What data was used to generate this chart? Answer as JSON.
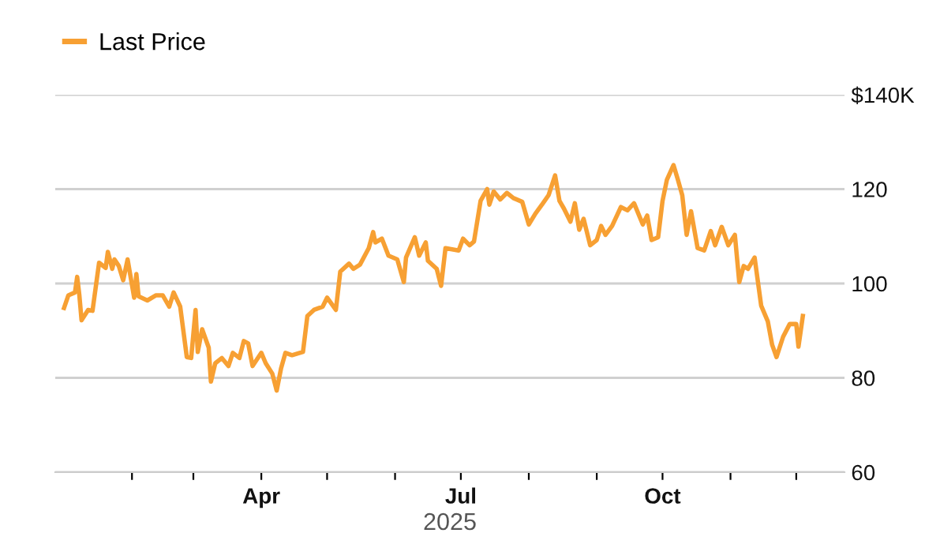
{
  "chart_data": {
    "type": "line",
    "xlabel": "2025",
    "legend": "top left",
    "grid": "y",
    "line_style": "solid",
    "marker": "none",
    "xlim": [
      "2024-12-28",
      "2025-12-23"
    ],
    "xticks": [
      {
        "value": "2025-02-01",
        "label": null
      },
      {
        "value": "2025-03-01",
        "label": null
      },
      {
        "value": "2025-04-01",
        "label": "Apr"
      },
      {
        "value": "2025-05-01",
        "label": null
      },
      {
        "value": "2025-06-01",
        "label": null
      },
      {
        "value": "2025-07-01",
        "label": "Jul"
      },
      {
        "value": "2025-08-01",
        "label": null
      },
      {
        "value": "2025-09-01",
        "label": null
      },
      {
        "value": "2025-10-01",
        "label": "Oct"
      },
      {
        "value": "2025-11-01",
        "label": null
      },
      {
        "value": "2025-12-01",
        "label": null
      }
    ],
    "ylim": [
      60,
      140
    ],
    "yticks": [
      60,
      80,
      100,
      120,
      {
        "value": 140,
        "label": "$140K"
      }
    ],
    "series": [
      {
        "name": "Last Price",
        "color": "#f7a033",
        "x": [
          "2025-01-01",
          "2025-01-03",
          "2025-01-06",
          "2025-01-07",
          "2025-01-08",
          "2025-01-09",
          "2025-01-12",
          "2025-01-14",
          "2025-01-17",
          "2025-01-20",
          "2025-01-21",
          "2025-01-23",
          "2025-01-24",
          "2025-01-26",
          "2025-01-28",
          "2025-01-30",
          "2025-02-02",
          "2025-02-03",
          "2025-02-04",
          "2025-02-08",
          "2025-02-12",
          "2025-02-15",
          "2025-02-18",
          "2025-02-20",
          "2025-02-23",
          "2025-02-26",
          "2025-02-28",
          "2025-03-02",
          "2025-03-03",
          "2025-03-05",
          "2025-03-08",
          "2025-03-09",
          "2025-03-11",
          "2025-03-14",
          "2025-03-17",
          "2025-03-19",
          "2025-03-22",
          "2025-03-24",
          "2025-03-26",
          "2025-03-28",
          "2025-04-01",
          "2025-04-03",
          "2025-04-06",
          "2025-04-08",
          "2025-04-10",
          "2025-04-12",
          "2025-04-15",
          "2025-04-20",
          "2025-04-22",
          "2025-04-25",
          "2025-04-29",
          "2025-05-01",
          "2025-05-05",
          "2025-05-07",
          "2025-05-11",
          "2025-05-13",
          "2025-05-16",
          "2025-05-20",
          "2025-05-22",
          "2025-05-23",
          "2025-05-26",
          "2025-05-29",
          "2025-06-02",
          "2025-06-05",
          "2025-06-06",
          "2025-06-10",
          "2025-06-12",
          "2025-06-15",
          "2025-06-16",
          "2025-06-20",
          "2025-06-22",
          "2025-06-24",
          "2025-06-30",
          "2025-07-02",
          "2025-07-05",
          "2025-07-07",
          "2025-07-10",
          "2025-07-13",
          "2025-07-14",
          "2025-07-16",
          "2025-07-19",
          "2025-07-22",
          "2025-07-25",
          "2025-07-29",
          "2025-08-01",
          "2025-08-04",
          "2025-08-07",
          "2025-08-10",
          "2025-08-13",
          "2025-08-15",
          "2025-08-17",
          "2025-08-20",
          "2025-08-22",
          "2025-08-24",
          "2025-08-26",
          "2025-08-29",
          "2025-09-01",
          "2025-09-03",
          "2025-09-05",
          "2025-09-08",
          "2025-09-12",
          "2025-09-15",
          "2025-09-18",
          "2025-09-22",
          "2025-09-24",
          "2025-09-26",
          "2025-09-29",
          "2025-10-01",
          "2025-10-03",
          "2025-10-06",
          "2025-10-08",
          "2025-10-10",
          "2025-10-12",
          "2025-10-14",
          "2025-10-17",
          "2025-10-20",
          "2025-10-23",
          "2025-10-25",
          "2025-10-28",
          "2025-10-31",
          "2025-11-03",
          "2025-11-05",
          "2025-11-07",
          "2025-11-09",
          "2025-11-12",
          "2025-11-15",
          "2025-11-18",
          "2025-11-20",
          "2025-11-22",
          "2025-11-25",
          "2025-11-28",
          "2025-12-01",
          "2025-12-02",
          "2025-12-04"
        ],
        "values": [
          94.8,
          97.5,
          98.1,
          101.4,
          97.5,
          92.2,
          94.4,
          94.2,
          104.4,
          103.3,
          106.7,
          103.1,
          105.1,
          103.7,
          100.7,
          105.1,
          97.0,
          102.0,
          97.3,
          96.4,
          97.5,
          97.5,
          95.1,
          98.1,
          95.1,
          84.4,
          84.2,
          94.4,
          85.5,
          90.3,
          86.4,
          79.2,
          83.1,
          84.2,
          82.5,
          85.3,
          84.2,
          87.8,
          87.3,
          82.5,
          85.3,
          83.1,
          80.9,
          77.3,
          82.0,
          85.3,
          84.8,
          85.5,
          93.1,
          94.4,
          95.1,
          97.0,
          94.4,
          102.5,
          104.2,
          103.1,
          104.0,
          107.5,
          110.9,
          108.7,
          109.5,
          105.9,
          105.1,
          100.3,
          105.5,
          109.8,
          105.9,
          108.7,
          104.8,
          103.1,
          99.5,
          107.5,
          107.0,
          109.5,
          108.1,
          108.9,
          117.5,
          120.0,
          116.7,
          119.5,
          117.8,
          119.2,
          118.1,
          117.3,
          112.5,
          114.8,
          116.7,
          118.7,
          122.9,
          117.5,
          115.9,
          113.1,
          117.0,
          111.4,
          113.7,
          108.1,
          109.2,
          112.2,
          110.3,
          112.2,
          116.2,
          115.5,
          117.0,
          112.5,
          114.4,
          109.2,
          109.8,
          117.5,
          122.0,
          125.1,
          122.0,
          118.7,
          110.3,
          115.3,
          107.5,
          107.0,
          111.1,
          108.1,
          112.0,
          108.1,
          110.3,
          100.3,
          103.7,
          103.1,
          105.5,
          95.3,
          92.0,
          87.0,
          84.4,
          88.7,
          91.4,
          91.4,
          86.6,
          93.1
        ]
      }
    ]
  }
}
